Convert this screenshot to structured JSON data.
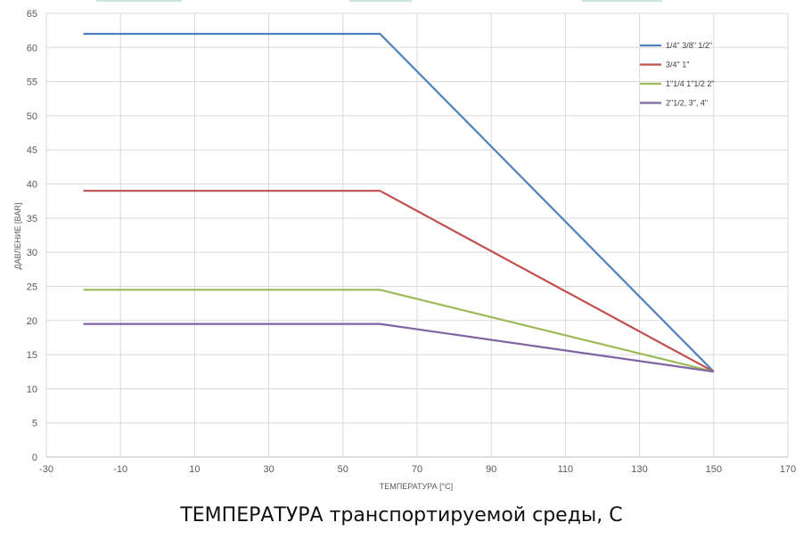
{
  "chart_data": {
    "type": "line",
    "title": "",
    "xlabel": "ТЕМПЕРАТУРА [°C]",
    "ylabel": "ДАВЛЕНИЕ [BAR]",
    "xlim": [
      -30,
      170
    ],
    "ylim": [
      0,
      65
    ],
    "x_ticks": [
      -30,
      -10,
      10,
      30,
      50,
      70,
      90,
      110,
      130,
      150,
      170
    ],
    "y_ticks": [
      0,
      5,
      10,
      15,
      20,
      25,
      30,
      35,
      40,
      45,
      50,
      55,
      60,
      65
    ],
    "grid": true,
    "legend_position": "top-right",
    "series": [
      {
        "name": "1/4\" 3/8\" 1/2\"",
        "color": "#4f81bd",
        "x": [
          -20,
          60,
          150
        ],
        "y": [
          62,
          62,
          12.5
        ]
      },
      {
        "name": "3/4\" 1\"",
        "color": "#c0504d",
        "x": [
          -20,
          60,
          150
        ],
        "y": [
          39,
          39,
          12.5
        ]
      },
      {
        "name": "1\"1/4 1\"1/2  2\"",
        "color": "#9bbb59",
        "x": [
          -20,
          60,
          150
        ],
        "y": [
          24.5,
          24.5,
          12.5
        ]
      },
      {
        "name": "2\"1/2, 3\", 4\"",
        "color": "#8064a2",
        "x": [
          -20,
          60,
          150
        ],
        "y": [
          19.5,
          19.5,
          12.5
        ]
      }
    ]
  },
  "caption": "ТЕМПЕРАТУРА транспортируемой среды, С"
}
